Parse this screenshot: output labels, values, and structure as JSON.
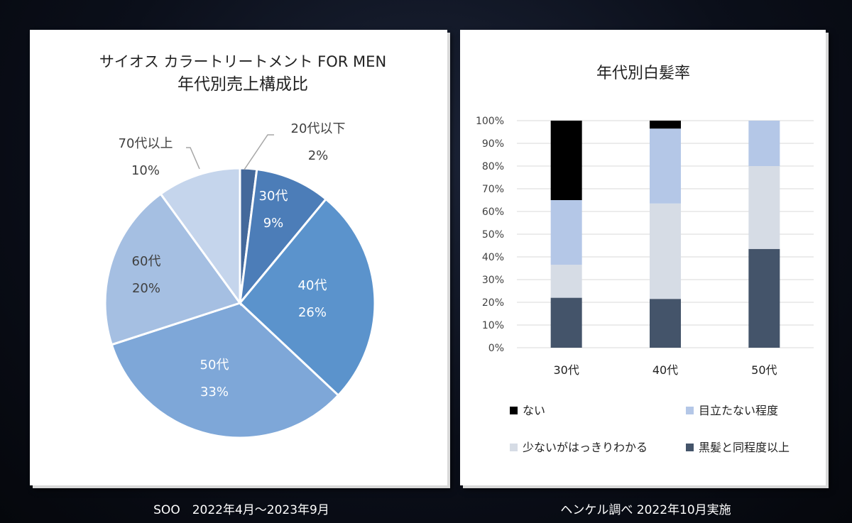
{
  "pie": {
    "title_line1": "サイオス カラートリートメント FOR MEN",
    "title_line2": "年代別売上構成比",
    "source": "SOO　2022年4月～2023年9月"
  },
  "bar": {
    "title": "年代別白髪率",
    "source": "ヘンケル調べ 2022年10月実施"
  },
  "chart_data": [
    {
      "type": "pie",
      "title": "サイオス カラートリートメント FOR MEN 年代別売上構成比",
      "slices": [
        {
          "label": "20代以下",
          "value": 2,
          "value_label": "2%",
          "color": "#44699b"
        },
        {
          "label": "30代",
          "value": 9,
          "value_label": "9%",
          "color": "#4c7db8"
        },
        {
          "label": "40代",
          "value": 26,
          "value_label": "26%",
          "color": "#5b93cc"
        },
        {
          "label": "50代",
          "value": 33,
          "value_label": "33%",
          "color": "#7ea7d8"
        },
        {
          "label": "60代",
          "value": 20,
          "value_label": "20%",
          "color": "#a5bfe2"
        },
        {
          "label": "70代以上",
          "value": 10,
          "value_label": "10%",
          "color": "#c5d5ec"
        }
      ]
    },
    {
      "type": "bar",
      "stacked": true,
      "title": "年代別白髪率",
      "categories": [
        "30代",
        "40代",
        "50代"
      ],
      "ylim": [
        0,
        100
      ],
      "yticks": [
        "0%",
        "10%",
        "20%",
        "30%",
        "40%",
        "50%",
        "60%",
        "70%",
        "80%",
        "90%",
        "100%"
      ],
      "series": [
        {
          "name": "黒髪と同程度以上",
          "values": [
            22,
            21.5,
            43.5
          ],
          "color": "#44546a"
        },
        {
          "name": "少ないがはっきりわかる",
          "values": [
            14.5,
            42,
            36.5
          ],
          "color": "#d6dce5"
        },
        {
          "name": "目立たない程度",
          "values": [
            28.5,
            33,
            20
          ],
          "color": "#b4c7e7"
        },
        {
          "name": "ない",
          "values": [
            35,
            3.5,
            0
          ],
          "color": "#000000"
        }
      ],
      "legend": [
        "ない",
        "目立たない程度",
        "少ないがはっきりわかる",
        "黒髪と同程度以上"
      ]
    }
  ]
}
